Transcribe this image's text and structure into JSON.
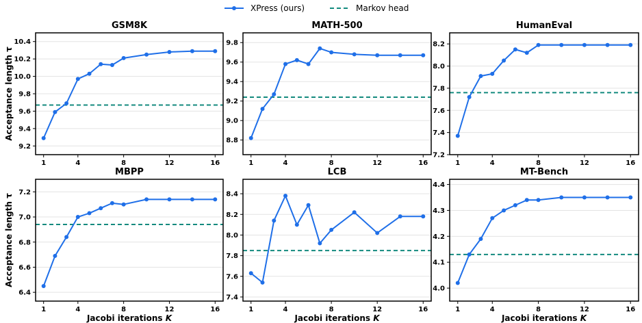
{
  "legend": {
    "items": [
      {
        "label": "XPress (ours)",
        "color": "#1f6fe8",
        "style": "line-marker"
      },
      {
        "label": "Markov head",
        "color": "#138a7e",
        "style": "dashed"
      }
    ],
    "placement": "top-center"
  },
  "chart_data": [
    {
      "type": "line",
      "title": "GSM8K",
      "xlabel": "",
      "ylabel": "Acceptance length τ",
      "xlim": [
        0.3,
        16.7
      ],
      "ylim": [
        9.1,
        10.5
      ],
      "xticks": [
        1,
        4,
        8,
        12,
        16
      ],
      "yticks": [
        9.2,
        9.4,
        9.6,
        9.8,
        10.0,
        10.2,
        10.4
      ],
      "grid": "y",
      "series": [
        {
          "name": "XPress (ours)",
          "x": [
            1,
            2,
            3,
            4,
            5,
            6,
            7,
            8,
            10,
            12,
            14,
            16
          ],
          "y": [
            9.29,
            9.59,
            9.69,
            9.97,
            10.03,
            10.14,
            10.13,
            10.21,
            10.25,
            10.28,
            10.29,
            10.29
          ]
        }
      ],
      "baseline": {
        "name": "Markov head",
        "y": 9.67
      }
    },
    {
      "type": "line",
      "title": "MATH-500",
      "xlabel": "",
      "ylabel": "",
      "xlim": [
        0.3,
        16.7
      ],
      "ylim": [
        8.65,
        9.9
      ],
      "xticks": [
        1,
        4,
        8,
        12,
        16
      ],
      "yticks": [
        8.8,
        9.0,
        9.2,
        9.4,
        9.6,
        9.8
      ],
      "grid": "y",
      "series": [
        {
          "name": "XPress (ours)",
          "x": [
            1,
            2,
            3,
            4,
            5,
            6,
            7,
            8,
            10,
            12,
            14,
            16
          ],
          "y": [
            8.82,
            9.12,
            9.27,
            9.58,
            9.62,
            9.58,
            9.74,
            9.7,
            9.68,
            9.67,
            9.67,
            9.67
          ]
        }
      ],
      "baseline": {
        "name": "Markov head",
        "y": 9.24
      }
    },
    {
      "type": "line",
      "title": "HumanEval",
      "xlabel": "",
      "ylabel": "",
      "xlim": [
        0.3,
        16.7
      ],
      "ylim": [
        7.2,
        8.3
      ],
      "xticks": [
        1,
        4,
        8,
        12,
        16
      ],
      "yticks": [
        7.2,
        7.4,
        7.6,
        7.8,
        8.0,
        8.2
      ],
      "grid": "y",
      "series": [
        {
          "name": "XPress (ours)",
          "x": [
            1,
            2,
            3,
            4,
            5,
            6,
            7,
            8,
            10,
            12,
            14,
            16
          ],
          "y": [
            7.37,
            7.72,
            7.91,
            7.93,
            8.05,
            8.15,
            8.12,
            8.19,
            8.19,
            8.19,
            8.19,
            8.19
          ]
        }
      ],
      "baseline": {
        "name": "Markov head",
        "y": 7.76
      }
    },
    {
      "type": "line",
      "title": "MBPP",
      "xlabel": "",
      "ylabel": "Acceptance length τ",
      "xlim": [
        0.3,
        16.7
      ],
      "ylim": [
        6.33,
        7.3
      ],
      "xticks": [
        1,
        4,
        8,
        12,
        16
      ],
      "yticks": [
        6.4,
        6.6,
        6.8,
        7.0,
        7.2
      ],
      "grid": "y",
      "series": [
        {
          "name": "XPress (ours)",
          "x": [
            1,
            2,
            3,
            4,
            5,
            6,
            7,
            8,
            10,
            12,
            14,
            16
          ],
          "y": [
            6.45,
            6.69,
            6.84,
            7.0,
            7.03,
            7.07,
            7.11,
            7.1,
            7.14,
            7.14,
            7.14,
            7.14
          ]
        }
      ],
      "baseline": {
        "name": "Markov head",
        "y": 6.94
      }
    },
    {
      "type": "line",
      "title": "LCB",
      "xlabel": "",
      "ylabel": "",
      "xlim": [
        0.3,
        16.7
      ],
      "ylim": [
        7.36,
        8.54
      ],
      "xticks": [
        1,
        4,
        8,
        12,
        16
      ],
      "yticks": [
        7.4,
        7.6,
        7.8,
        8.0,
        8.2,
        8.4
      ],
      "grid": "y",
      "series": [
        {
          "name": "XPress (ours)",
          "x": [
            1,
            2,
            3,
            4,
            5,
            6,
            7,
            8,
            10,
            12,
            14,
            16
          ],
          "y": [
            7.63,
            7.54,
            8.14,
            8.38,
            8.1,
            8.29,
            7.92,
            8.05,
            8.22,
            8.02,
            8.18,
            8.18
          ]
        }
      ],
      "baseline": {
        "name": "Markov head",
        "y": 7.85
      }
    },
    {
      "type": "line",
      "title": "MT-Bench",
      "xlabel": "",
      "ylabel": "",
      "xlim": [
        0.3,
        16.7
      ],
      "ylim": [
        3.95,
        4.42
      ],
      "xticks": [
        1,
        4,
        8,
        12,
        16
      ],
      "yticks": [
        4.0,
        4.1,
        4.2,
        4.3,
        4.4
      ],
      "grid": "y",
      "series": [
        {
          "name": "XPress (ours)",
          "x": [
            1,
            2,
            3,
            4,
            5,
            6,
            7,
            8,
            10,
            12,
            14,
            16
          ],
          "y": [
            4.02,
            4.13,
            4.19,
            4.27,
            4.3,
            4.32,
            4.34,
            4.34,
            4.35,
            4.35,
            4.35,
            4.35
          ]
        }
      ],
      "baseline": {
        "name": "Markov head",
        "y": 4.13
      }
    }
  ],
  "shared_xlabel": "Jacobi iterations",
  "shared_xlabel_var": "K",
  "colors": {
    "series": "#1f6fe8",
    "baseline": "#138a7e",
    "grid": "#e3e3e3",
    "axis": "#000000"
  }
}
